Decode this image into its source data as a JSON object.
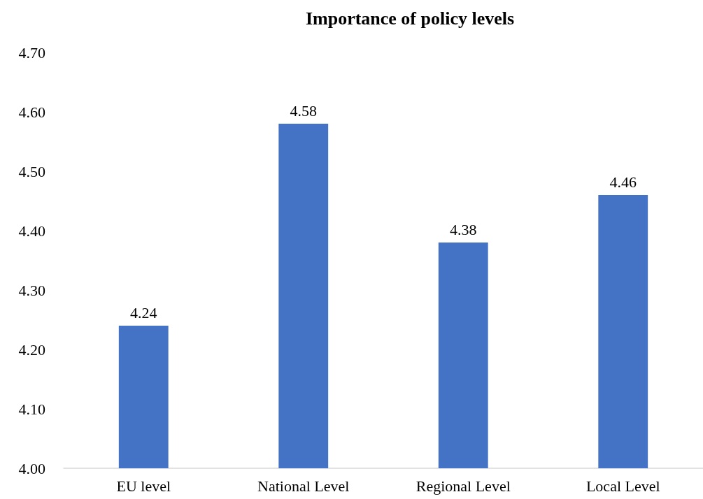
{
  "chart_data": {
    "type": "bar",
    "title": "Importance of policy levels",
    "categories": [
      "EU level",
      "National Level",
      "Regional Level",
      "Local Level"
    ],
    "values": [
      4.24,
      4.58,
      4.38,
      4.46
    ],
    "color": "#4472c4",
    "data_labels": true,
    "ylim": [
      4.0,
      4.7
    ],
    "yticks": [
      {
        "value": 4.0,
        "label": "4.00"
      },
      {
        "value": 4.1,
        "label": "4.10"
      },
      {
        "value": 4.2,
        "label": "4.20"
      },
      {
        "value": 4.3,
        "label": "4.30"
      },
      {
        "value": 4.4,
        "label": "4.40"
      },
      {
        "value": 4.5,
        "label": "4.50"
      },
      {
        "value": 4.6,
        "label": "4.60"
      },
      {
        "value": 4.7,
        "label": "4.70"
      }
    ],
    "grid": false
  }
}
